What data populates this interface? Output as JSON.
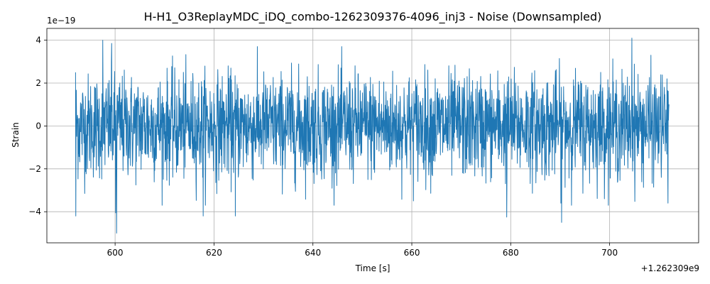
{
  "chart_data": {
    "type": "line",
    "title": "H-H1_O3ReplayMDC_iDQ_combo-1262309376-4096_inj3 - Noise (Downsampled)",
    "xlabel": "Time [s]",
    "ylabel": "Strain",
    "x_offset_label": "+1.262309e9",
    "y_scale_label": "1e−19",
    "xlim": [
      586.2,
      718.0
    ],
    "ylim": [
      -5.45,
      4.55
    ],
    "x_ticks": [
      600,
      620,
      640,
      660,
      680,
      700
    ],
    "x_tick_labels": [
      "600",
      "620",
      "640",
      "660",
      "680",
      "700"
    ],
    "y_ticks": [
      -4,
      -2,
      0,
      2,
      4
    ],
    "y_tick_labels": [
      "−4",
      "−2",
      "0",
      "2",
      "4"
    ],
    "grid": true,
    "series": [
      {
        "color": "#1f77b4",
        "x_start": 592.0,
        "x_end": 712.0,
        "samples": 2400,
        "typical_amplitude": 1.2,
        "notable_points": [
          {
            "x": 592.0,
            "y": 2.5
          },
          {
            "x": 592.05,
            "y": -4.2
          },
          {
            "x": 597.5,
            "y": 4.0
          },
          {
            "x": 599.3,
            "y": 3.85
          },
          {
            "x": 600.3,
            "y": -5.0
          },
          {
            "x": 600.1,
            "y": -4.05
          },
          {
            "x": 617.8,
            "y": -4.2
          },
          {
            "x": 624.3,
            "y": -4.2
          },
          {
            "x": 679.2,
            "y": -4.25
          },
          {
            "x": 690.3,
            "y": -4.5
          },
          {
            "x": 704.5,
            "y": 4.1
          },
          {
            "x": 711.6,
            "y": 2.2
          },
          {
            "x": 711.8,
            "y": -3.6
          },
          {
            "x": 711.95,
            "y": 0.8
          }
        ]
      }
    ]
  }
}
